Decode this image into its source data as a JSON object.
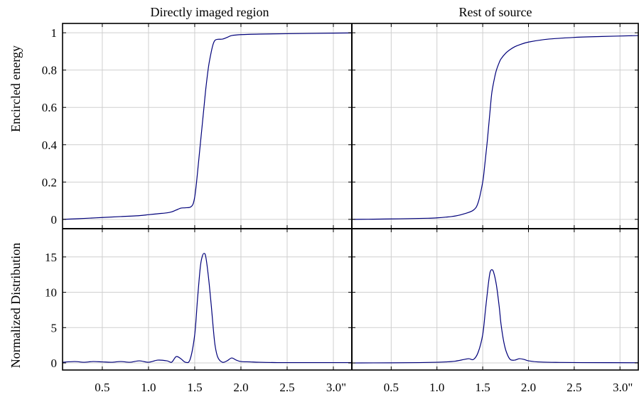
{
  "chart_data": {
    "type": "line",
    "panel_titles": [
      "Directly imaged region",
      "Rest of source"
    ],
    "row_ylabels": [
      "Encircled energy",
      "Normalized Distribution"
    ],
    "xlim": [
      0.07,
      3.2
    ],
    "x_ticks": [
      0.5,
      1.0,
      1.5,
      2.0,
      2.5,
      3.0
    ],
    "x_tick_labels": [
      "0.5",
      "1.0",
      "1.5",
      "2.0",
      "2.5",
      "3.0\""
    ],
    "grid": true,
    "rows": [
      {
        "name": "Encircled energy",
        "ylim": [
          -0.05,
          1.05
        ],
        "y_ticks": [
          0,
          0.2,
          0.4,
          0.6,
          0.8,
          1
        ],
        "y_tick_labels": [
          "0",
          "0.2",
          "0.4",
          "0.6",
          "0.8",
          "1"
        ]
      },
      {
        "name": "Normalized Distribution",
        "ylim": [
          -1,
          19
        ],
        "y_ticks": [
          0,
          5,
          10,
          15
        ],
        "y_tick_labels": [
          "0",
          "5",
          "10",
          "15"
        ]
      }
    ],
    "panels": [
      {
        "row": 0,
        "col": 0,
        "x": [
          0.07,
          0.3,
          0.5,
          0.7,
          0.9,
          1.0,
          1.1,
          1.2,
          1.25,
          1.3,
          1.35,
          1.4,
          1.45,
          1.48,
          1.5,
          1.52,
          1.55,
          1.58,
          1.6,
          1.62,
          1.65,
          1.68,
          1.7,
          1.72,
          1.75,
          1.8,
          1.85,
          1.9,
          2.0,
          2.2,
          2.5,
          3.0,
          3.2
        ],
        "y": [
          0.0,
          0.005,
          0.01,
          0.015,
          0.02,
          0.025,
          0.03,
          0.035,
          0.04,
          0.05,
          0.06,
          0.062,
          0.065,
          0.08,
          0.12,
          0.2,
          0.35,
          0.5,
          0.6,
          0.7,
          0.82,
          0.9,
          0.94,
          0.96,
          0.965,
          0.966,
          0.975,
          0.985,
          0.99,
          0.993,
          0.995,
          0.998,
          0.999
        ]
      },
      {
        "row": 0,
        "col": 1,
        "x": [
          0.07,
          0.3,
          0.6,
          0.9,
          1.0,
          1.1,
          1.2,
          1.3,
          1.4,
          1.45,
          1.5,
          1.52,
          1.55,
          1.58,
          1.6,
          1.63,
          1.65,
          1.68,
          1.7,
          1.75,
          1.8,
          1.85,
          1.9,
          2.0,
          2.2,
          2.5,
          2.8,
          3.2
        ],
        "y": [
          0.0,
          0.001,
          0.003,
          0.006,
          0.008,
          0.012,
          0.018,
          0.03,
          0.05,
          0.09,
          0.2,
          0.28,
          0.42,
          0.58,
          0.68,
          0.76,
          0.8,
          0.84,
          0.86,
          0.89,
          0.91,
          0.925,
          0.935,
          0.95,
          0.965,
          0.975,
          0.98,
          0.985
        ]
      },
      {
        "row": 1,
        "col": 0,
        "x": [
          0.07,
          0.2,
          0.3,
          0.4,
          0.5,
          0.6,
          0.7,
          0.8,
          0.9,
          1.0,
          1.1,
          1.2,
          1.25,
          1.3,
          1.35,
          1.4,
          1.45,
          1.5,
          1.53,
          1.56,
          1.58,
          1.6,
          1.62,
          1.65,
          1.68,
          1.7,
          1.72,
          1.75,
          1.8,
          1.85,
          1.9,
          1.95,
          2.0,
          2.1,
          2.2,
          2.4,
          2.6,
          3.0,
          3.2
        ],
        "y": [
          0.1,
          0.2,
          0.1,
          0.2,
          0.15,
          0.1,
          0.2,
          0.1,
          0.3,
          0.1,
          0.4,
          0.3,
          0.1,
          0.9,
          0.6,
          0.1,
          0.5,
          4.0,
          9.0,
          13.5,
          15.0,
          15.5,
          15.0,
          12.0,
          8.0,
          5.0,
          2.5,
          0.8,
          0.1,
          0.3,
          0.7,
          0.4,
          0.2,
          0.15,
          0.1,
          0.05,
          0.05,
          0.05,
          0.05
        ]
      },
      {
        "row": 1,
        "col": 1,
        "x": [
          0.07,
          0.5,
          0.8,
          1.0,
          1.1,
          1.2,
          1.3,
          1.35,
          1.4,
          1.45,
          1.5,
          1.53,
          1.56,
          1.58,
          1.6,
          1.62,
          1.65,
          1.68,
          1.7,
          1.73,
          1.76,
          1.8,
          1.85,
          1.9,
          1.95,
          2.0,
          2.1,
          2.3,
          2.6,
          3.2
        ],
        "y": [
          0.0,
          0.02,
          0.05,
          0.1,
          0.15,
          0.25,
          0.5,
          0.6,
          0.5,
          1.5,
          4.0,
          7.5,
          11.0,
          12.8,
          13.2,
          12.8,
          11.0,
          8.0,
          5.5,
          3.0,
          1.5,
          0.5,
          0.4,
          0.6,
          0.5,
          0.3,
          0.15,
          0.08,
          0.05,
          0.03
        ]
      }
    ]
  }
}
